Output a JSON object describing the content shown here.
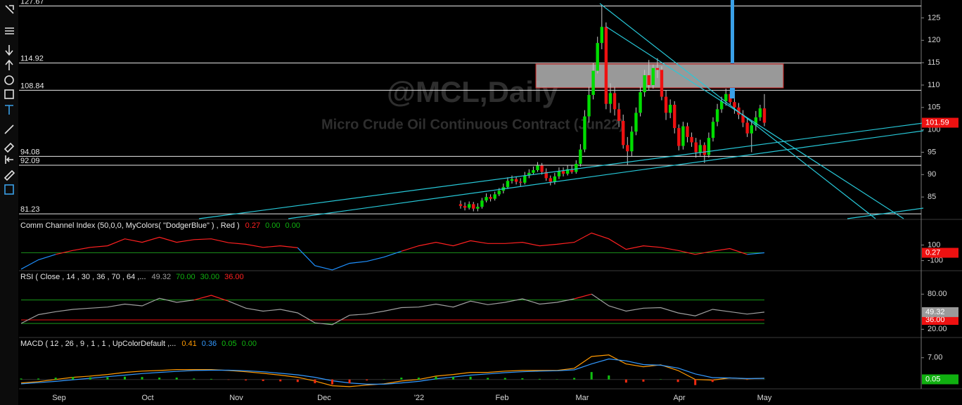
{
  "time_axis": [
    "Sep",
    "Oct",
    "Nov",
    "Dec",
    "'22",
    "Feb",
    "Mar",
    "Apr",
    "May"
  ],
  "chart_data": [
    {
      "type": "candlestick",
      "title": "@MCL,Daily",
      "subtitle": "Micro Crude Oil Continuous Contract (Jun22)",
      "ylim": [
        80,
        129
      ],
      "yticks": [
        85,
        90,
        95,
        100,
        105,
        110,
        115,
        120,
        125
      ],
      "levels": [
        127.67,
        114.92,
        108.84,
        94.08,
        92.09,
        81.23
      ],
      "level_color": "#e8e8e8",
      "up_color": "#00dd00",
      "down_color": "#ee1111",
      "box_color": "#ee1111",
      "open": [
        83.4,
        83.0,
        82.6,
        83.4,
        82.4,
        82.8,
        84.2,
        85.0,
        84.6,
        85.6,
        86.4,
        87.2,
        88.6,
        89.0,
        88.4,
        88.2,
        89.8,
        90.4,
        91.0,
        92.0,
        90.6,
        89.2,
        88.4,
        89.6,
        90.8,
        90.2,
        91.2,
        90.6,
        92.4,
        95.6,
        103.0,
        107.8,
        113.2,
        119.4,
        123.0,
        105.8,
        108.2,
        104.6,
        102.0,
        96.6,
        95.2,
        99.6,
        103.8,
        108.4,
        112.2,
        110.0,
        113.8,
        113.4,
        107.4,
        103.8,
        105.6,
        100.4,
        96.4,
        100.8,
        98.4,
        97.2,
        95.0,
        96.6,
        94.4,
        98.2,
        101.8,
        104.6,
        106.4,
        108.0,
        106.2,
        105.0,
        103.4,
        101.6,
        99.2,
        101.0,
        102.8,
        104.8
      ],
      "high": [
        84.2,
        83.8,
        84.0,
        83.9,
        83.6,
        84.8,
        85.8,
        85.6,
        86.2,
        87.0,
        88.0,
        89.4,
        89.8,
        89.6,
        89.2,
        90.6,
        91.2,
        91.8,
        92.8,
        92.6,
        91.4,
        89.8,
        90.4,
        91.6,
        91.6,
        92.0,
        92.2,
        93.2,
        96.8,
        104.4,
        109.6,
        115.0,
        120.8,
        128.0,
        124.0,
        110.4,
        109.6,
        106.0,
        103.4,
        98.4,
        100.8,
        105.0,
        109.6,
        113.4,
        115.6,
        114.6,
        116.0,
        114.2,
        108.8,
        106.8,
        106.4,
        101.2,
        101.8,
        101.6,
        99.4,
        98.2,
        97.8,
        97.2,
        99.4,
        102.8,
        105.8,
        107.4,
        109.2,
        109.0,
        107.0,
        106.0,
        104.4,
        102.6,
        102.0,
        104.2,
        105.6,
        108.0
      ],
      "low": [
        82.4,
        82.0,
        82.2,
        81.8,
        81.8,
        82.4,
        83.8,
        84.0,
        84.2,
        85.2,
        85.8,
        86.8,
        88.0,
        87.8,
        87.4,
        87.8,
        89.2,
        90.0,
        90.6,
        90.0,
        88.6,
        87.6,
        87.8,
        89.0,
        89.6,
        89.8,
        90.2,
        90.2,
        91.8,
        95.0,
        101.6,
        106.8,
        112.6,
        118.0,
        104.6,
        103.8,
        103.2,
        100.6,
        95.8,
        92.2,
        94.0,
        98.8,
        103.0,
        107.4,
        108.8,
        109.2,
        111.6,
        106.6,
        102.2,
        102.6,
        99.2,
        95.4,
        95.6,
        97.2,
        96.2,
        93.8,
        94.2,
        92.6,
        93.8,
        97.4,
        100.8,
        103.8,
        105.4,
        105.6,
        103.6,
        102.4,
        100.6,
        98.4,
        95.0,
        99.8,
        102.0,
        100.8
      ],
      "close": [
        83.0,
        82.6,
        83.4,
        82.4,
        82.8,
        84.2,
        85.0,
        84.6,
        85.6,
        86.4,
        87.2,
        88.6,
        89.0,
        88.4,
        88.2,
        89.8,
        90.4,
        91.0,
        92.0,
        90.6,
        89.2,
        88.4,
        89.6,
        90.8,
        90.2,
        91.2,
        90.6,
        92.4,
        95.6,
        103.0,
        107.8,
        113.2,
        119.4,
        123.0,
        105.8,
        108.2,
        104.6,
        102.0,
        96.6,
        95.2,
        99.6,
        103.8,
        108.4,
        112.2,
        110.0,
        113.8,
        113.4,
        107.4,
        103.8,
        105.6,
        100.4,
        96.4,
        100.8,
        98.4,
        97.2,
        95.0,
        96.6,
        94.4,
        98.2,
        101.8,
        104.6,
        106.4,
        108.0,
        106.2,
        105.0,
        103.4,
        101.6,
        99.2,
        101.0,
        102.8,
        104.8,
        101.59
      ]
    },
    {
      "type": "line",
      "title": "Comm Channel Index (50,0,0, MyColors( \"DodgerBlue\" ) , Red )",
      "readouts": [
        {
          "value": 0.27,
          "color": "#ff2020"
        },
        {
          "value": 0,
          "label": "0.00",
          "color": "#10b010"
        },
        {
          "value": 0,
          "label": "0.00",
          "color": "#10b010"
        }
      ],
      "ylim": [
        -230,
        430
      ],
      "yticks": [
        -100,
        100
      ],
      "levels": [
        {
          "value": 0,
          "color": "#1a8c1a"
        }
      ],
      "series": [
        {
          "values": [
            -210,
            -90,
            -20,
            30,
            70,
            90,
            180,
            135,
            200,
            135,
            170,
            180,
            130,
            110,
            70,
            90,
            65,
            -165,
            -220,
            -135,
            -110,
            -55,
            20,
            90,
            135,
            90,
            155,
            120,
            120,
            135,
            90,
            110,
            135,
            255,
            180,
            45,
            90,
            70,
            30,
            -20,
            20,
            55,
            -20,
            0.27
          ],
          "color": "#ff2020",
          "alt_color": "#1e90ff",
          "alt_below": 0,
          "axis_box": true,
          "box_color": "#ee1111"
        }
      ]
    },
    {
      "type": "line",
      "title": "RSI ( Close , 14 , 30 , 36 , 70 , 64 ,...",
      "readouts": [
        {
          "value": 49.32,
          "color": "#a0a0a0"
        },
        {
          "value": 70,
          "label": "70.00",
          "color": "#10b010"
        },
        {
          "value": 30,
          "label": "30.00",
          "color": "#10b010"
        },
        {
          "value": 36,
          "label": "36.00",
          "color": "#ff2020"
        }
      ],
      "ylim": [
        6,
        120
      ],
      "yticks": [
        {
          "value": 80,
          "label": "80.00"
        },
        {
          "value": 20,
          "label": "20.00"
        }
      ],
      "levels": [
        {
          "value": 70,
          "color": "#1a9c1a"
        },
        {
          "value": 36,
          "label": "36.00",
          "color": "#ee1111"
        },
        {
          "value": 30,
          "color": "#1a9c1a"
        }
      ],
      "series": [
        {
          "values": [
            30,
            45,
            50,
            54,
            56,
            58,
            63,
            60,
            73,
            66,
            70,
            78,
            68,
            56,
            51,
            54,
            48,
            31,
            28,
            44,
            46,
            51,
            57,
            58,
            63,
            58,
            68,
            62,
            66,
            72,
            63,
            66,
            72,
            80,
            60,
            51,
            56,
            57,
            48,
            43,
            54,
            50,
            46,
            49.32
          ],
          "color": "#a0a0a0",
          "alt_color": "#ff2020",
          "alt_above": 70,
          "axis_box": true,
          "box_color": "#9a9a9a"
        }
      ]
    },
    {
      "type": "line",
      "title": "MACD ( 12 , 26 , 9 , 1 , 1 , UpColorDefault ,...",
      "readouts": [
        {
          "value": 0.41,
          "color": "#ff9900"
        },
        {
          "value": 0.36,
          "color": "#3399ff"
        },
        {
          "value": 0.05,
          "color": "#10c010"
        },
        {
          "value": 0,
          "label": "0.00",
          "color": "#10b010"
        }
      ],
      "ylim": [
        -3,
        13.5
      ],
      "yticks": [
        {
          "value": 7,
          "label": "7.00"
        }
      ],
      "levels": [
        {
          "value": 0,
          "color": "#333333"
        }
      ],
      "series": [
        {
          "values": [
            -1.1,
            -0.7,
            0,
            0.7,
            1.1,
            1.6,
            2.3,
            2.7,
            2.9,
            3.2,
            3.2,
            3.2,
            2.9,
            2.5,
            2.0,
            1.4,
            0.7,
            -0.5,
            -2.0,
            -2.3,
            -1.8,
            -1.4,
            -0.5,
            0,
            1.1,
            1.6,
            2.3,
            2.3,
            2.7,
            2.9,
            2.9,
            2.9,
            3.6,
            7.4,
            7.9,
            5.0,
            4.1,
            4.7,
            2.9,
            0,
            -0.2,
            0.5,
            0.2,
            0.41
          ],
          "color": "#ff9900"
        },
        {
          "values": [
            -1.4,
            -1.0,
            -0.6,
            -0.1,
            0.4,
            0.9,
            1.4,
            1.9,
            2.3,
            2.6,
            2.9,
            3.0,
            3.0,
            2.8,
            2.5,
            2.0,
            1.5,
            0.7,
            -0.4,
            -1.1,
            -1.5,
            -1.5,
            -1.1,
            -0.6,
            0.2,
            0.8,
            1.4,
            1.8,
            2.2,
            2.5,
            2.7,
            2.8,
            3.1,
            5.0,
            6.6,
            6.0,
            4.8,
            4.6,
            3.7,
            1.8,
            0.6,
            0.5,
            0.3,
            0.36
          ],
          "color": "#3399ff"
        },
        {
          "kind": "bars",
          "values": [
            0.3,
            0.3,
            0.6,
            0.8,
            0.7,
            0.7,
            0.9,
            0.8,
            0.6,
            0.6,
            0.3,
            0.2,
            -0.1,
            -0.3,
            -0.5,
            -0.6,
            -0.8,
            -1.2,
            -1.6,
            -1.2,
            -0.3,
            0.1,
            0.6,
            0.6,
            0.9,
            0.8,
            0.9,
            0.5,
            0.5,
            0.4,
            0.2,
            0.1,
            0.5,
            2.4,
            1.3,
            -1.0,
            -0.7,
            0.1,
            -0.8,
            -1.8,
            -0.8,
            0,
            -0.1,
            0.05
          ],
          "color": "#10c010",
          "alt_color": "#ee2a10",
          "alt_below": 0,
          "axis_box": true,
          "box_color": "#10b010"
        }
      ]
    }
  ]
}
